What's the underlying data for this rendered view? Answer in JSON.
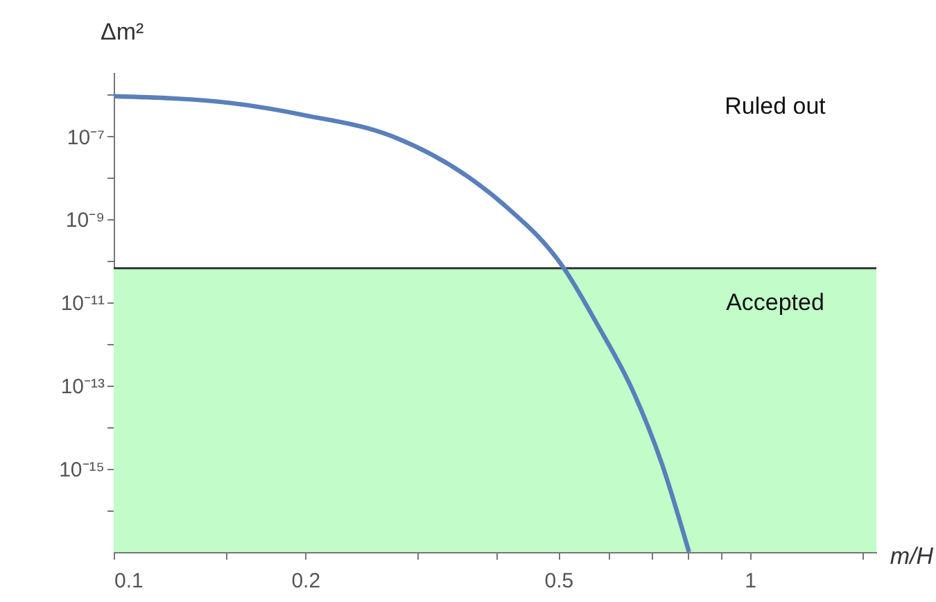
{
  "chart_data": {
    "type": "line",
    "xlabel": "m/H",
    "ylabel": "Δm²",
    "log": "xy",
    "grid": false,
    "xlim": [
      0.1,
      1.58
    ],
    "ylim": [
      1e-17,
      3.5e-06
    ],
    "xticks": [
      0.1,
      {
        "value": 0.15,
        "label": null
      },
      0.2,
      {
        "value": 0.3,
        "label": null
      },
      {
        "value": 0.4,
        "label": null
      },
      0.5,
      {
        "value": 0.6,
        "label": null
      },
      {
        "value": 0.7,
        "label": null
      },
      {
        "value": 0.8,
        "label": null
      },
      {
        "value": 0.9,
        "label": null
      },
      1,
      {
        "value": 1.5,
        "label": null
      }
    ],
    "yticks": [
      {
        "value": 1e-16,
        "label": null
      },
      {
        "value": 1e-15,
        "label": "10⁻¹⁵"
      },
      {
        "value": 1e-14,
        "label": null
      },
      {
        "value": 1e-13,
        "label": "10⁻¹³"
      },
      {
        "value": 1e-12,
        "label": null
      },
      {
        "value": 1e-11,
        "label": "10⁻¹¹"
      },
      {
        "value": 1e-10,
        "label": null
      },
      {
        "value": 1e-09,
        "label": "10⁻⁹"
      },
      {
        "value": 1e-08,
        "label": null
      },
      {
        "value": 1e-07,
        "label": "10⁻⁷"
      },
      {
        "value": 1e-06,
        "label": null
      }
    ],
    "x": [
      0.1,
      0.153,
      0.2,
      0.274,
      0.365,
      0.41,
      0.51,
      0.574,
      0.656,
      0.725,
      0.802
    ],
    "series": [
      {
        "color": "#5a7fba",
        "values": [
          9.2e-07,
          6.3e-07,
          3.2e-07,
          1e-07,
          9.3e-09,
          2.3e-09,
          6.7e-11,
          3.2e-12,
          7e-14,
          1.5e-15,
          1e-17
        ]
      }
    ],
    "bands": [
      {
        "axis": "y",
        "from": 1e-17,
        "to": 6.7e-11,
        "color": "#c1fcc9",
        "label": "Accepted"
      }
    ],
    "ref_lines": [
      {
        "axis": "y",
        "value": 6.7e-11,
        "color": "#333333"
      }
    ],
    "annotations": [
      "Ruled out"
    ]
  }
}
